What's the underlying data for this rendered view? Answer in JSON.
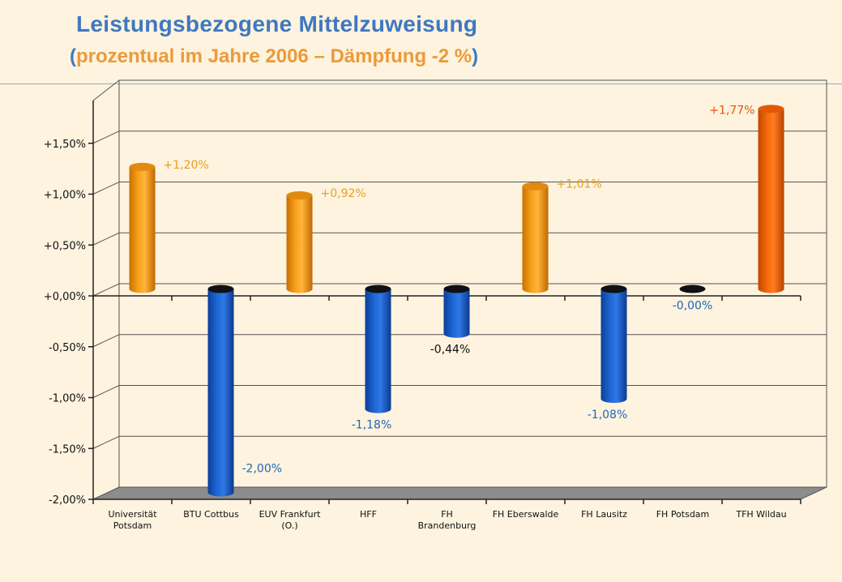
{
  "title": "Leistungsbezogene Mittelzuweisung",
  "subtitle": {
    "open": "(",
    "text": "prozentual im Jahre 2006 – Dämpfung -2 %",
    "close": ")"
  },
  "colors": {
    "title": "#3f78c2",
    "subtitle": "#eb9a3a",
    "positive": "#f29b16",
    "positive_highlight": "#f26a0a",
    "negative": "#1d63cc",
    "label_positive": "#e8a020",
    "label_highlight": "#e8550a",
    "label_negative": "#2366b8",
    "label_neutral": "#111111",
    "floor": "#8c8c8c"
  },
  "chart_data": {
    "type": "bar",
    "style": "3d-cylinder",
    "grid": true,
    "legend": "none",
    "ylim": [
      -2.0,
      2.0
    ],
    "yticks": [
      -2.0,
      -1.5,
      -1.0,
      -0.5,
      0.0,
      0.5,
      1.0,
      1.5
    ],
    "ytick_labels": [
      "-2,00%",
      "-1,50%",
      "-1,00%",
      "-0,50%",
      "+0,00%",
      "+0,50%",
      "+1,00%",
      "+1,50%"
    ],
    "categories": [
      [
        "Universität",
        "Potsdam"
      ],
      [
        "BTU Cottbus"
      ],
      [
        "EUV Frankfurt",
        "(O.)"
      ],
      [
        "HFF"
      ],
      [
        "FH",
        "Brandenburg"
      ],
      [
        "FH Eberswalde"
      ],
      [
        "FH Lausitz"
      ],
      [
        "FH Potsdam"
      ],
      [
        "TFH Wildau"
      ]
    ],
    "values": [
      1.2,
      -2.0,
      0.92,
      -1.18,
      -0.44,
      1.01,
      -1.08,
      -0.0,
      1.77
    ],
    "data_labels": [
      "+1,20%",
      "-2,00%",
      "+0,92%",
      "-1,18%",
      "-0,44%",
      "+1,01%",
      "-1,08%",
      "-0,00%",
      "+1,77%"
    ],
    "label_colors": [
      "positive",
      "negative",
      "positive",
      "negative",
      "neutral",
      "positive",
      "negative",
      "negative",
      "highlight"
    ]
  }
}
